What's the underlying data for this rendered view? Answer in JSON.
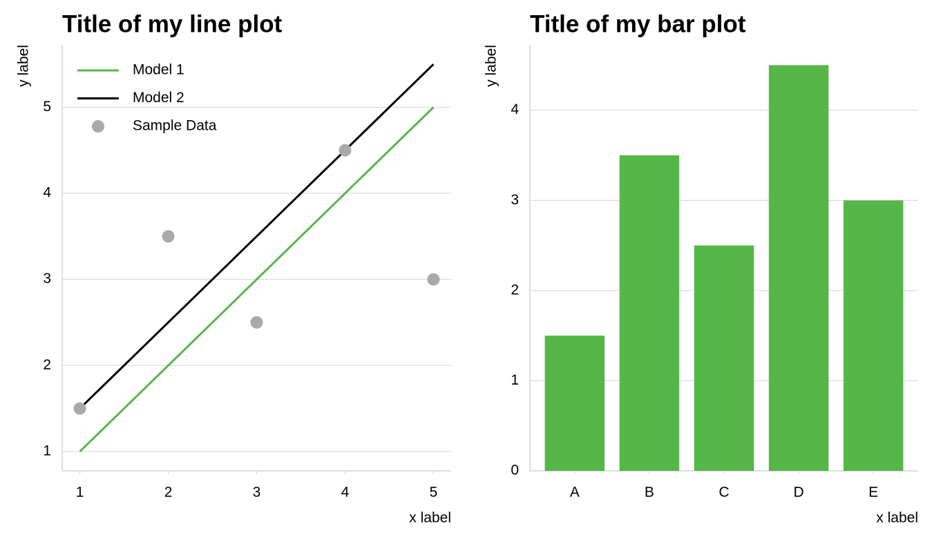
{
  "chart_data": [
    {
      "type": "line",
      "title": "Title of my line plot",
      "x_label": "x label",
      "y_label": "y label",
      "x": [
        1,
        2,
        3,
        4,
        5
      ],
      "series": [
        {
          "name": "Model 1",
          "color": "#55b748",
          "mode": "line",
          "values": [
            1,
            2,
            3,
            4,
            5
          ]
        },
        {
          "name": "Model 2",
          "color": "#000000",
          "mode": "line",
          "values": [
            1.5,
            2.5,
            3.5,
            4.5,
            5.5
          ]
        },
        {
          "name": "Sample Data",
          "color": "#a9a9a9",
          "mode": "markers",
          "values": [
            1.5,
            3.5,
            2.5,
            4.5,
            3
          ]
        }
      ],
      "xlim": [
        0.8,
        5.2
      ],
      "xticks": [
        1,
        2,
        3,
        4,
        5
      ],
      "ylim": [
        0.775,
        5.725
      ],
      "yticks": [
        1,
        2,
        3,
        4,
        5
      ],
      "grid": true,
      "legend": "top-left"
    },
    {
      "type": "bar",
      "title": "Title of my bar plot",
      "x_label": "x label",
      "y_label": "y label",
      "categories": [
        "A",
        "B",
        "C",
        "D",
        "E"
      ],
      "values": [
        1.5,
        3.5,
        2.5,
        4.5,
        3
      ],
      "color": "#55b748",
      "ylim": [
        0,
        4.725
      ],
      "yticks": [
        0,
        1,
        2,
        3,
        4
      ],
      "grid": true
    }
  ]
}
